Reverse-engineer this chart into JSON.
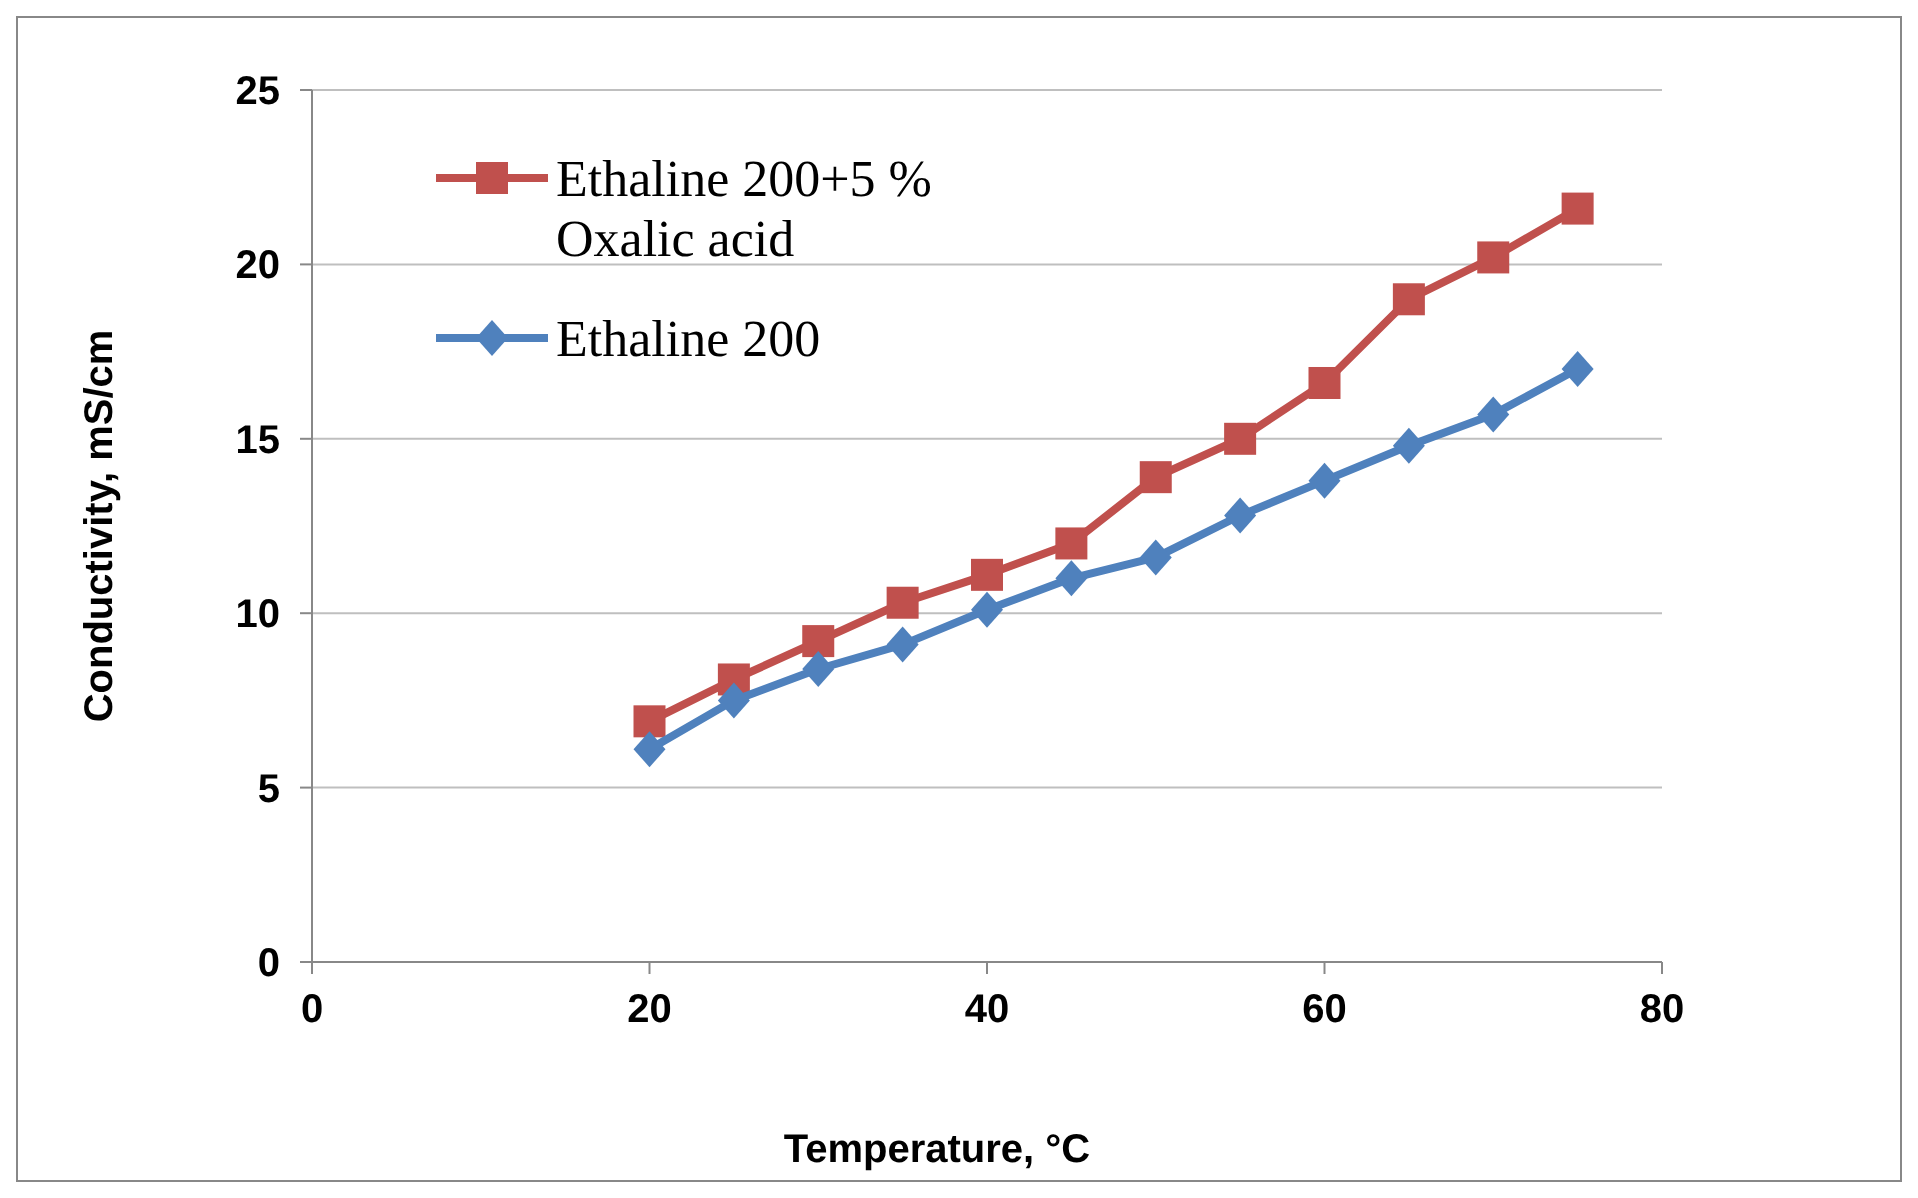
{
  "chart_data": {
    "type": "line",
    "xlabel": "Temperature, °C",
    "ylabel": "Conductivity, mS/cm",
    "x": [
      20,
      25,
      30,
      35,
      40,
      45,
      50,
      55,
      60,
      65,
      70,
      75
    ],
    "series": [
      {
        "name": "Ethaline 200+5 % Oxalic acid",
        "color": "#c0504d",
        "marker": "square",
        "values": [
          6.9,
          8.1,
          9.2,
          10.3,
          11.1,
          12.0,
          13.9,
          15.0,
          16.6,
          19.0,
          20.2,
          21.6
        ]
      },
      {
        "name": "Ethaline 200",
        "color": "#4f81bd",
        "marker": "diamond",
        "values": [
          6.1,
          7.5,
          8.4,
          9.1,
          10.1,
          11.0,
          11.6,
          12.8,
          13.8,
          14.8,
          15.7,
          17.0
        ]
      }
    ],
    "xlim": [
      0,
      80
    ],
    "xticks": [
      0,
      20,
      40,
      60,
      80
    ],
    "ylim": [
      0,
      25
    ],
    "yticks": [
      0,
      5,
      10,
      15,
      20,
      25
    ],
    "grid": "y",
    "legend": "top left",
    "line_style": "solid"
  }
}
